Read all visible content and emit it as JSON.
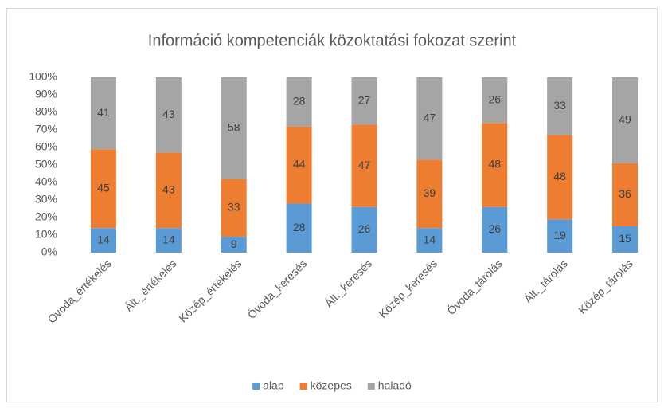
{
  "chart_data": {
    "type": "stacked_bar",
    "title": "Információ kompetenciák közoktatási fokozat szerint",
    "categories": [
      "Óvoda_értékelés",
      "Ált._értékelés",
      "Közép_értékelés",
      "Óvoda_keresés",
      "Ált._keresés",
      "Közép_keresés",
      "Óvoda_tárolás",
      "Ált._tárolás",
      "Közép_tárolás"
    ],
    "series": [
      {
        "name": "alap",
        "color": "#5b9bd5",
        "values": [
          14,
          14,
          9,
          28,
          26,
          14,
          26,
          19,
          15
        ]
      },
      {
        "name": "közepes",
        "color": "#ed7d31",
        "values": [
          45,
          43,
          33,
          44,
          47,
          39,
          48,
          48,
          36
        ]
      },
      {
        "name": "haladó",
        "color": "#a5a5a5",
        "values": [
          41,
          43,
          58,
          28,
          27,
          47,
          26,
          33,
          49
        ]
      }
    ],
    "ylim": [
      0,
      100
    ],
    "yticks": [
      {
        "value": 0,
        "label": "0%"
      },
      {
        "value": 10,
        "label": "10%"
      },
      {
        "value": 20,
        "label": "20%"
      },
      {
        "value": 30,
        "label": "30%"
      },
      {
        "value": 40,
        "label": "40%"
      },
      {
        "value": 50,
        "label": "50%"
      },
      {
        "value": 60,
        "label": "60%"
      },
      {
        "value": 70,
        "label": "70%"
      },
      {
        "value": 80,
        "label": "80%"
      },
      {
        "value": 90,
        "label": "90%"
      },
      {
        "value": 100,
        "label": "100%"
      }
    ],
    "grid": false,
    "legend": "bottom"
  }
}
